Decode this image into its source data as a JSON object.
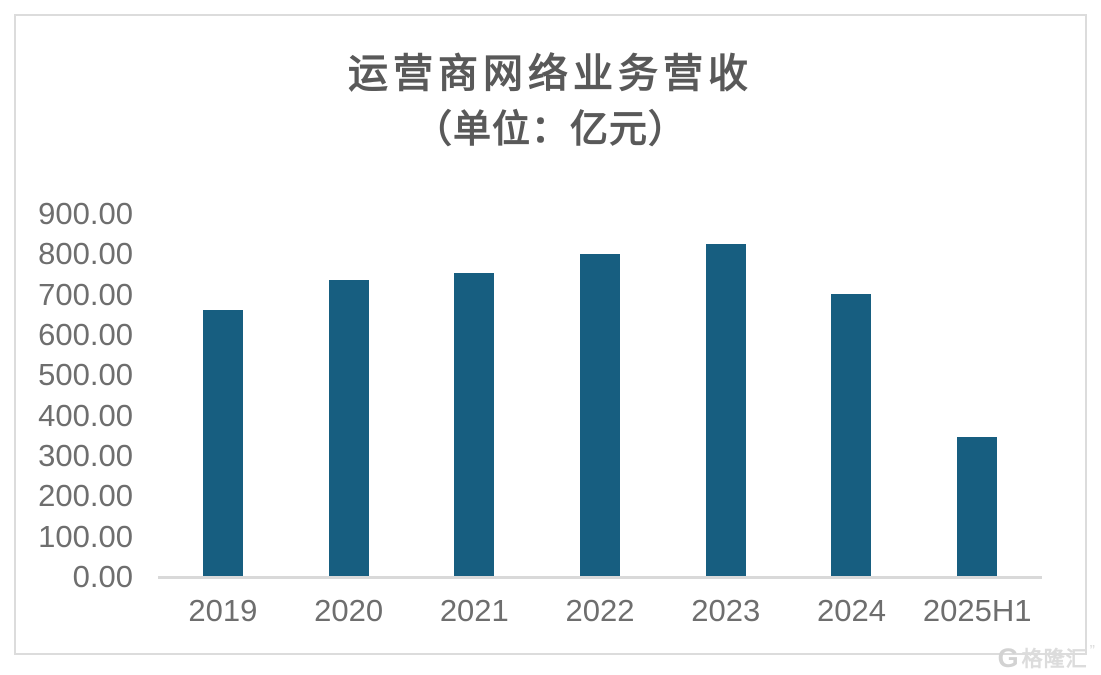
{
  "chart_data": {
    "type": "bar",
    "title": "运营商网络业务营收",
    "subtitle": "（单位：亿元）",
    "categories": [
      "2019",
      "2020",
      "2021",
      "2022",
      "2023",
      "2024",
      "2025H1"
    ],
    "values": [
      662,
      737,
      754,
      800,
      826,
      701,
      347
    ],
    "y_ticks": [
      "0.00",
      "100.00",
      "200.00",
      "300.00",
      "400.00",
      "500.00",
      "600.00",
      "700.00",
      "800.00",
      "900.00"
    ],
    "ylim": [
      0,
      900
    ],
    "xlabel": "",
    "ylabel": "",
    "grid": false,
    "legend": "none",
    "bar_color": "#175E80"
  },
  "colors": {
    "bar": "#175E80",
    "title_text": "#595959",
    "axis_text": "#6E6E6E",
    "axis_line": "#D9D9D9",
    "frame_border": "#DCDCDC",
    "watermark": "#D9D9D9"
  },
  "watermark": {
    "logo": "G",
    "text": "格隆汇",
    "quote": "”"
  }
}
